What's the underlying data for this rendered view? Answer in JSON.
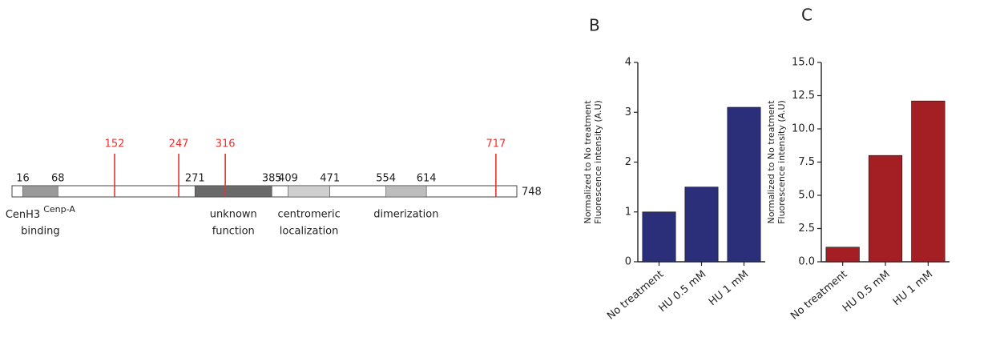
{
  "diagram": {
    "length": 748,
    "domains": [
      {
        "start": 16,
        "end": 68,
        "color": "#9a9a9a",
        "label_lines": [
          "CenH3",
          "binding"
        ],
        "label_sup": "Cenp-A"
      },
      {
        "start": 271,
        "end": 385,
        "color": "#6a6a6a",
        "label_lines": [
          "unknown",
          "function"
        ]
      },
      {
        "start": 409,
        "end": 471,
        "color": "#cfcfcf",
        "label_lines": [
          "centromeric",
          "localization"
        ]
      },
      {
        "start": 554,
        "end": 614,
        "color": "#bdbdbd",
        "label_lines": [
          "dimerization"
        ]
      }
    ],
    "sites": [
      152,
      247,
      316,
      717
    ],
    "site_color": "#e8332f"
  },
  "chart_data": [
    {
      "type": "bar",
      "panel": "B",
      "ylabel": [
        "Normalized to No treatment",
        "Fluorescence intensity (A.U)"
      ],
      "categories": [
        "No treatment",
        "HU 0.5 mM",
        "HU 1 mM"
      ],
      "values": [
        1.0,
        1.5,
        3.1
      ],
      "color": "#2b2f7a",
      "ylim": [
        0,
        4
      ],
      "yticks": [
        0,
        1,
        2,
        3,
        4
      ]
    },
    {
      "type": "bar",
      "panel": "C",
      "ylabel": [
        "Normalized to No treatment",
        "Fluorescence intensity (A.U)"
      ],
      "categories": [
        "No treatment",
        "HU 0.5 mM",
        "HU 1 mM"
      ],
      "values": [
        1.1,
        8.0,
        12.1
      ],
      "color": "#a31f24",
      "ylim": [
        0,
        15
      ],
      "yticks": [
        {
          "value": 0,
          "label": "0.0"
        },
        {
          "value": 2.5,
          "label": "2.5"
        },
        {
          "value": 5,
          "label": "5.0"
        },
        {
          "value": 7.5,
          "label": "7.5"
        },
        {
          "value": 10,
          "label": "10.0"
        },
        {
          "value": 12.5,
          "label": "12.5"
        },
        {
          "value": 15,
          "label": "15.0"
        }
      ]
    }
  ]
}
